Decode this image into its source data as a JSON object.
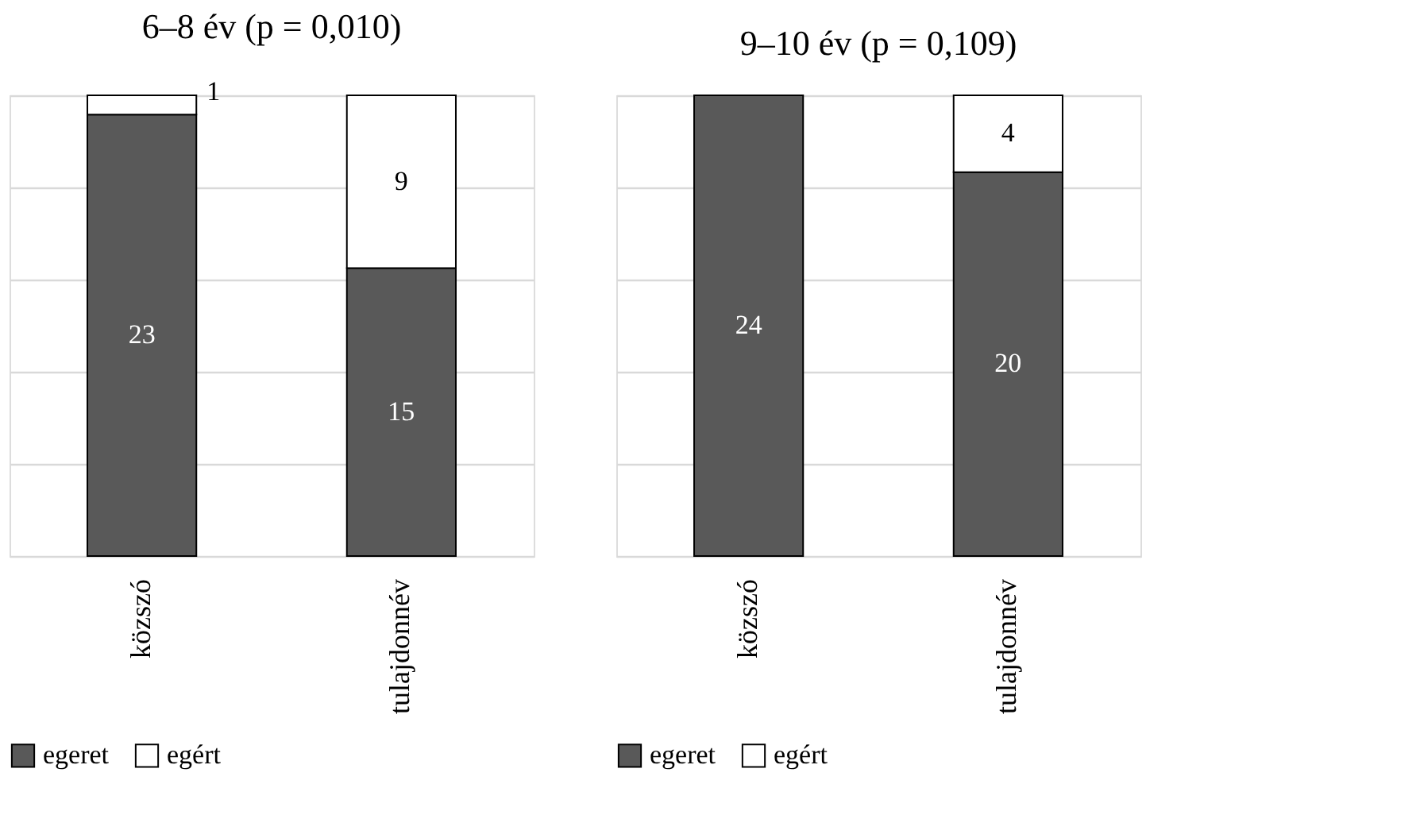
{
  "chart_data": [
    {
      "type": "bar",
      "title": "6–8 év (p = 0,010)",
      "categories": [
        "közszó",
        "tulajdonnév"
      ],
      "stacked": true,
      "data_labels": true,
      "legend": "bottom",
      "grid": "y",
      "tick_labels": "x",
      "ylim": [
        0,
        24
      ],
      "yticks": [
        {
          "value": 0,
          "label": null
        },
        {
          "value": 4.8,
          "label": null
        },
        {
          "value": 9.6,
          "label": null
        },
        {
          "value": 14.4,
          "label": null
        },
        {
          "value": 19.2,
          "label": null
        },
        {
          "value": 24,
          "label": null
        }
      ],
      "series": [
        {
          "name": "egeret",
          "color": "#595959",
          "values": [
            23,
            15
          ]
        },
        {
          "name": "egért",
          "color": "#ffffff",
          "values": [
            1,
            9
          ]
        }
      ]
    },
    {
      "type": "bar",
      "title": "9–10 év (p = 0,109)",
      "categories": [
        "közszó",
        "tulajdonnév"
      ],
      "stacked": true,
      "data_labels": true,
      "legend": "bottom",
      "grid": "y",
      "tick_labels": "x",
      "ylim": [
        0,
        24
      ],
      "yticks": [
        {
          "value": 0,
          "label": null
        },
        {
          "value": 4.8,
          "label": null
        },
        {
          "value": 9.6,
          "label": null
        },
        {
          "value": 14.4,
          "label": null
        },
        {
          "value": 19.2,
          "label": null
        },
        {
          "value": 24,
          "label": null
        }
      ],
      "series": [
        {
          "name": "egeret",
          "color": "#595959",
          "values": [
            24,
            20
          ]
        },
        {
          "name": "egért",
          "color": "#ffffff",
          "values": [
            null,
            4
          ]
        }
      ]
    }
  ]
}
